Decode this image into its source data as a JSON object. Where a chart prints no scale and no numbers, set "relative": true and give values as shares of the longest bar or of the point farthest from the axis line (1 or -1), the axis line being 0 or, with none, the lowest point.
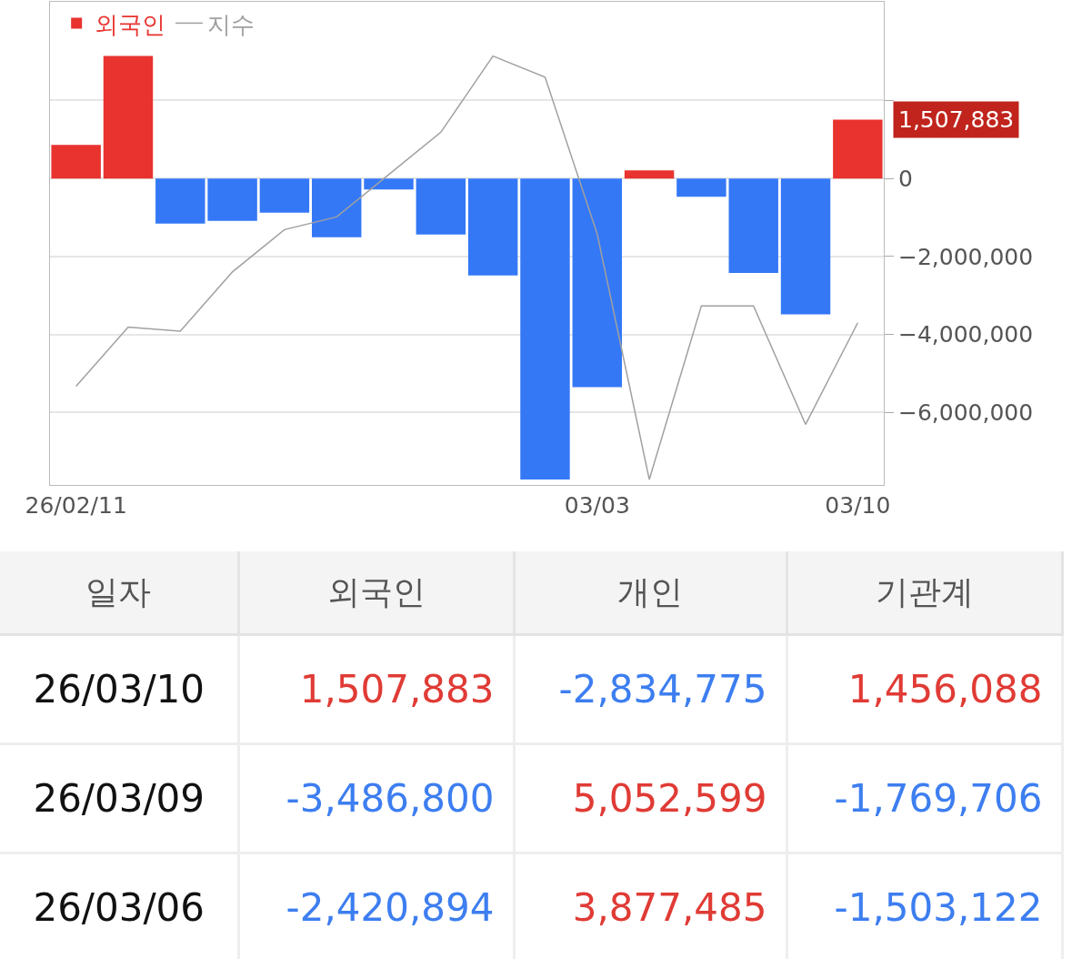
{
  "chart_data": [
    {
      "type": "bar",
      "categories": [
        "26/02/11",
        null,
        null,
        null,
        null,
        null,
        null,
        null,
        null,
        null,
        "03/03",
        null,
        null,
        null,
        null,
        "03/10"
      ],
      "series": [
        {
          "name": "외국인",
          "color": "#e8332f",
          "colors": [
            "#e8332f",
            "#e8332f",
            "#3478f6",
            "#3478f6",
            "#3478f6",
            "#3478f6",
            "#3478f6",
            "#3478f6",
            "#3478f6",
            "#3478f6",
            "#3478f6",
            "#e8332f",
            "#3478f6",
            "#3478f6",
            "#3478f6",
            "#e8332f"
          ],
          "values": [
            860000,
            3140000,
            -1160000,
            -1090000,
            -880000,
            -1510000,
            -280000,
            -1440000,
            -2490000,
            -7720000,
            -5350000,
            210000,
            -470000,
            -2420894,
            -3486800,
            1507883
          ]
        }
      ],
      "ylim": [
        -7860000,
        4530000
      ],
      "yticks": [
        {
          "value": 2000000,
          "label": null
        },
        {
          "value": 0,
          "label": "0"
        },
        {
          "value": -2000000,
          "label": "−2,000,000"
        },
        {
          "value": -4000000,
          "label": "−4,000,000"
        },
        {
          "value": -6000000,
          "label": "−6,000,000"
        }
      ],
      "annotations": [
        {
          "text": "1,507,883",
          "x": "03/10",
          "y": 1507883
        }
      ],
      "grid": "y",
      "legend": "top left"
    },
    {
      "type": "line",
      "relative": true,
      "categories": [
        null,
        null,
        null,
        null,
        null,
        null,
        null,
        null,
        null,
        null,
        null,
        null,
        null,
        null,
        null,
        null
      ],
      "series": [
        {
          "name": "지수",
          "color": "#a0a0a0",
          "values": [
            0.22,
            0.36,
            0.35,
            0.49,
            0.59,
            0.62,
            0.72,
            0.82,
            1,
            0.95,
            0.58,
            0,
            0.41,
            0.41,
            0.13,
            0.37
          ]
        }
      ],
      "legend": "top left",
      "marker": "none",
      "line_style": "solid"
    },
    {
      "type": "other",
      "ylabel": "일자",
      "categories": [
        "외국인",
        "개인",
        "기관계"
      ],
      "y_categories": [
        "26/03/10",
        "26/03/09",
        "26/03/06"
      ],
      "cell_labels": [
        [
          "1,507,883",
          "-2,834,775",
          "1,456,088"
        ],
        [
          "-3,486,800",
          "5,052,599",
          "-1,769,706"
        ],
        [
          "-2,420,894",
          "3,877,485",
          "-1,503,122"
        ]
      ]
    }
  ]
}
